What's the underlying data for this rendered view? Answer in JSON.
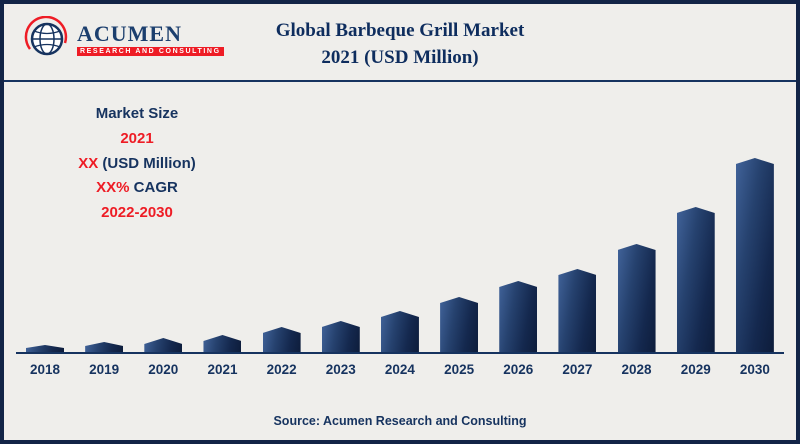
{
  "palette": {
    "navy": "#16335f",
    "red": "#ee1c25",
    "bg": "#efeeeb",
    "border": "#122447",
    "bar-dark": "#0d1c3a"
  },
  "logo": {
    "name": "ACUMEN",
    "subtitle": "RESEARCH AND CONSULTING"
  },
  "header": {
    "title_line1": "Global Barbeque Grill Market",
    "title_line2": "2021 (USD Million)"
  },
  "info_panel": {
    "line1": "Market Size",
    "line2": "2021",
    "line3_value": "XX",
    "line3_unit": " (USD Million)",
    "line4_value": "XX%",
    "line4_label": " CAGR",
    "line5": "2022-2030"
  },
  "chart_data": {
    "type": "bar",
    "title": "Global Barbeque Grill Market 2021 (USD Million)",
    "categories": [
      "2018",
      "2019",
      "2020",
      "2021",
      "2022",
      "2023",
      "2024",
      "2025",
      "2026",
      "2027",
      "2028",
      "2029",
      "2030"
    ],
    "values": [
      9,
      12,
      16,
      19,
      27,
      33,
      43,
      57,
      73,
      85,
      110,
      147,
      196
    ],
    "values_note": "value axis unlabeled on chart; values are relative heights estimated from pixels",
    "xlabel": "",
    "ylabel": "",
    "grid": "off",
    "legend": "none",
    "bar_color": "#14284e"
  },
  "footer": {
    "source": "Source: Acumen Research and Consulting"
  }
}
